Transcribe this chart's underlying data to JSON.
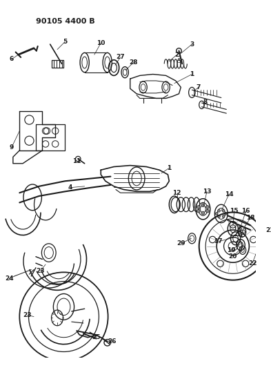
{
  "title": "90105 4400 B",
  "bg_color": "#ffffff",
  "line_color": "#1a1a1a",
  "fig_width": 3.93,
  "fig_height": 5.33,
  "dpi": 100
}
